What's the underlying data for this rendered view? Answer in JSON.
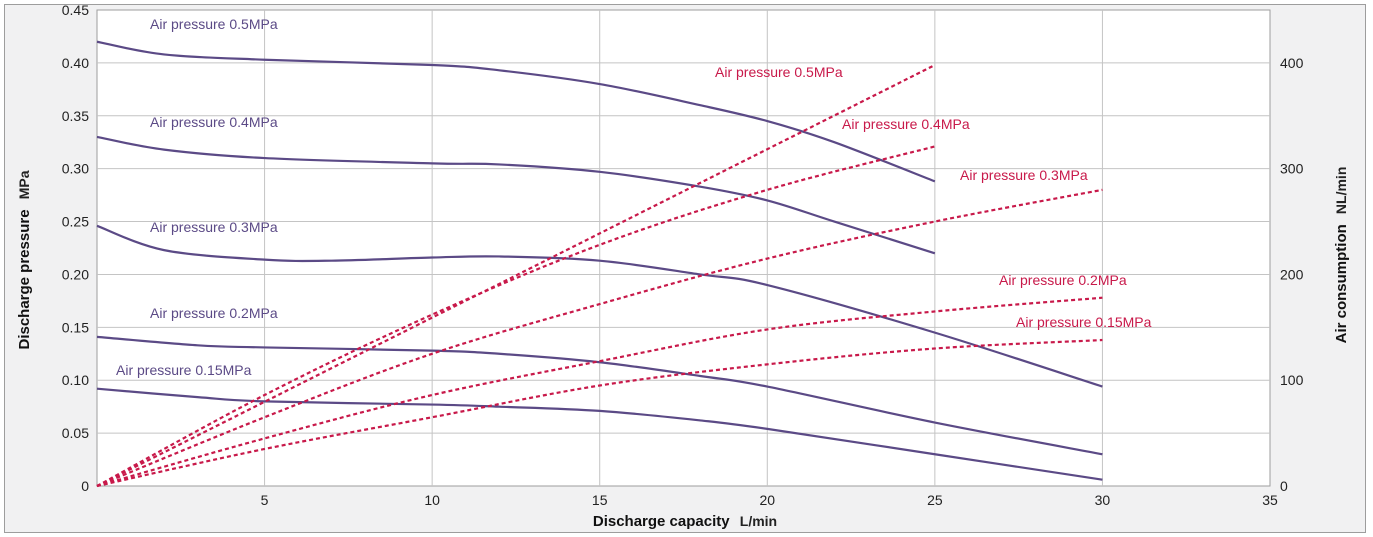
{
  "chart_data": {
    "type": "line",
    "xlabel": "Discharge capacity",
    "xunit": "L/min",
    "ylabel_left": "Discharge pressure",
    "yunit_left": "MPa",
    "ylabel_right": "Air consumption",
    "yunit_right": "NL/min",
    "xlim": [
      0,
      35
    ],
    "ylim_left": [
      0,
      0.45
    ],
    "ylim_right": [
      0,
      450
    ],
    "x_ticks": [
      "5",
      "10",
      "15",
      "20",
      "25",
      "30",
      "35"
    ],
    "y_left_ticks": [
      "0",
      "0.05",
      "0.10",
      "0.15",
      "0.20",
      "0.25",
      "0.30",
      "0.35",
      "0.40",
      "0.45"
    ],
    "y_right_ticks": [
      "0",
      "100",
      "200",
      "300",
      "400"
    ],
    "grid": true,
    "colors": {
      "pressure": "#5b4a86",
      "consumption": "#c8194a"
    },
    "pressure_series": [
      {
        "name": "Air pressure 0.5MPa",
        "x": [
          0,
          2,
          5,
          10,
          12,
          15,
          18,
          20,
          22,
          25
        ],
        "y": [
          0.42,
          0.408,
          0.403,
          0.398,
          0.393,
          0.38,
          0.36,
          0.345,
          0.325,
          0.288
        ]
      },
      {
        "name": "Air pressure 0.4MPa",
        "x": [
          0,
          2,
          5,
          10,
          12,
          15,
          18,
          20,
          22,
          25
        ],
        "y": [
          0.33,
          0.318,
          0.31,
          0.305,
          0.304,
          0.297,
          0.283,
          0.27,
          0.25,
          0.22
        ]
      },
      {
        "name": "Air pressure 0.3MPa",
        "x": [
          0,
          2,
          5,
          7,
          10,
          12,
          15,
          18,
          20,
          25,
          30
        ],
        "y": [
          0.246,
          0.223,
          0.214,
          0.213,
          0.216,
          0.217,
          0.213,
          0.2,
          0.19,
          0.145,
          0.094
        ]
      },
      {
        "name": "Air pressure 0.2MPa",
        "x": [
          0,
          3,
          5,
          10,
          12,
          15,
          18,
          20,
          25,
          30
        ],
        "y": [
          0.141,
          0.133,
          0.131,
          0.128,
          0.125,
          0.117,
          0.104,
          0.094,
          0.06,
          0.03
        ]
      },
      {
        "name": "Air pressure 0.15MPa",
        "x": [
          0,
          3,
          5,
          10,
          12,
          15,
          18,
          20,
          25,
          30
        ],
        "y": [
          0.092,
          0.084,
          0.08,
          0.077,
          0.075,
          0.071,
          0.062,
          0.054,
          0.03,
          0.006
        ]
      }
    ],
    "consumption_series": [
      {
        "name": "Air pressure 0.5MPa",
        "x": [
          0,
          25
        ],
        "y": [
          0,
          398
        ]
      },
      {
        "name": "Air pressure 0.4MPa",
        "x": [
          0,
          5,
          10,
          15,
          20,
          25
        ],
        "y": [
          0,
          86,
          162,
          228,
          280,
          321
        ]
      },
      {
        "name": "Air pressure 0.3MPa",
        "x": [
          0,
          5,
          10,
          15,
          20,
          25,
          30
        ],
        "y": [
          0,
          65,
          125,
          172,
          215,
          250,
          280
        ]
      },
      {
        "name": "Air pressure 0.2MPa",
        "x": [
          0,
          5,
          10,
          15,
          20,
          25,
          30
        ],
        "y": [
          0,
          45,
          86,
          118,
          148,
          165,
          178
        ]
      },
      {
        "name": "Air pressure 0.15MPa",
        "x": [
          0,
          5,
          10,
          15,
          20,
          25,
          30
        ],
        "y": [
          0,
          35,
          65,
          95,
          115,
          130,
          138
        ]
      }
    ]
  }
}
